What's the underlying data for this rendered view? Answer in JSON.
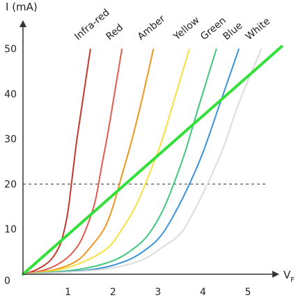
{
  "chart_data": {
    "type": "line",
    "ylabel": "I (mA)",
    "xlabel_main": "V",
    "xlabel_sub": "F",
    "xlim": [
      0,
      5.5
    ],
    "ylim": [
      0,
      50
    ],
    "x_ticks": [
      "1",
      "2",
      "3",
      "4",
      "5"
    ],
    "y_ticks": [
      "0",
      "10",
      "20",
      "30",
      "40",
      "50"
    ],
    "reference_line": {
      "y": 20
    },
    "series": [
      {
        "name": "Infra-red",
        "color": "#c0392b",
        "x": [
          0,
          0.3,
          0.6,
          0.8,
          0.9,
          1.0,
          1.1,
          1.2,
          1.35,
          1.5
        ],
        "y": [
          0,
          1,
          3,
          6,
          9,
          14,
          22,
          30,
          40,
          50
        ]
      },
      {
        "name": "Red",
        "color": "#e05a4e",
        "x": [
          0,
          0.5,
          0.9,
          1.2,
          1.4,
          1.6,
          1.75,
          1.9,
          2.05,
          2.2
        ],
        "y": [
          0,
          1,
          3,
          6,
          10,
          16,
          24,
          32,
          41,
          50
        ]
      },
      {
        "name": "Amber",
        "color": "#f0961e",
        "x": [
          0,
          0.7,
          1.2,
          1.5,
          1.8,
          2.0,
          2.2,
          2.4,
          2.65,
          2.9
        ],
        "y": [
          0,
          1,
          3,
          6,
          10,
          15,
          22,
          29,
          39,
          50
        ]
      },
      {
        "name": "Yellow",
        "color": "#f5e040",
        "x": [
          0,
          0.8,
          1.4,
          1.9,
          2.2,
          2.5,
          2.8,
          3.1,
          3.4,
          3.7
        ],
        "y": [
          0,
          1,
          3,
          6,
          10,
          15,
          22,
          30,
          40,
          50
        ]
      },
      {
        "name": "Green",
        "color": "#3cc87a",
        "x": [
          0,
          1.2,
          2.0,
          2.5,
          2.8,
          3.1,
          3.35,
          3.6,
          3.9,
          4.3
        ],
        "y": [
          0,
          1,
          3,
          6,
          9,
          14,
          20,
          27,
          37,
          50
        ]
      },
      {
        "name": "Blue",
        "color": "#3a92d8",
        "x": [
          0,
          1.5,
          2.3,
          2.8,
          3.1,
          3.4,
          3.7,
          4.0,
          4.35,
          4.8
        ],
        "y": [
          0,
          1,
          3,
          6,
          9,
          14,
          20,
          27,
          37,
          50
        ]
      },
      {
        "name": "White",
        "color": "#dcdcdc",
        "x": [
          0,
          1.7,
          2.6,
          3.1,
          3.5,
          3.8,
          4.1,
          4.45,
          4.8,
          5.3
        ],
        "y": [
          0,
          1,
          3,
          6,
          9,
          14,
          20,
          28,
          38,
          50
        ]
      }
    ],
    "overlay_line": {
      "color": "#33e03a",
      "x": [
        0,
        5.75
      ],
      "y": [
        0,
        50.5
      ]
    }
  }
}
